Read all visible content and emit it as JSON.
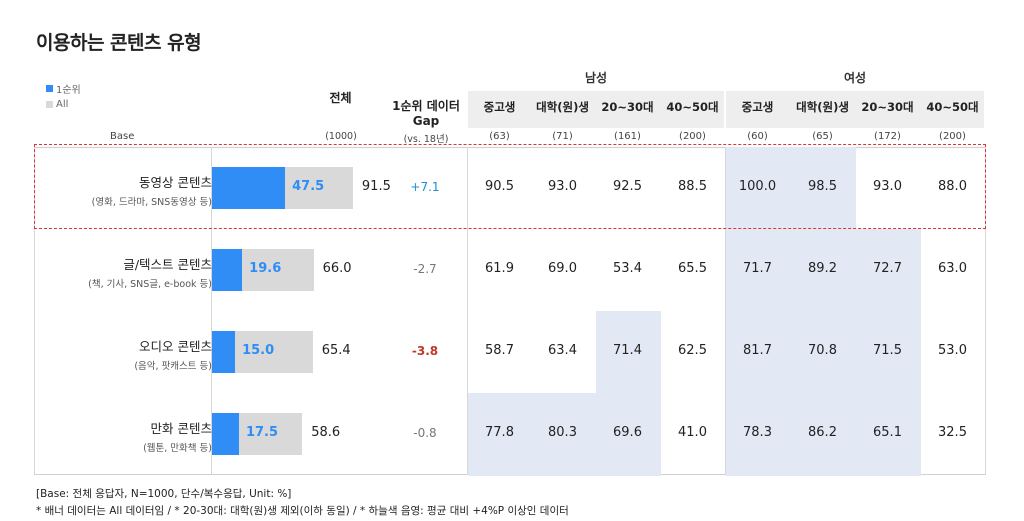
{
  "title": "이용하는 콘텐츠 유형",
  "legend": [
    {
      "label": "1순위",
      "color": "#2f8df5"
    },
    {
      "label": "All",
      "color": "#d9d9d9"
    }
  ],
  "base_label": "Base",
  "headers": {
    "total": "전체",
    "total_base": "(1000)",
    "gap_line1": "1순위 데이터",
    "gap_line2": "Gap",
    "gap_base": "(vs. 18년)"
  },
  "groups": [
    {
      "name": "남성",
      "cols": [
        "중고생",
        "대학(원)생",
        "20~30대",
        "40~50대"
      ],
      "bases": [
        "(63)",
        "(71)",
        "(161)",
        "(200)"
      ]
    },
    {
      "name": "여성",
      "cols": [
        "중고생",
        "대학(원)생",
        "20~30대",
        "40~50대"
      ],
      "bases": [
        "(60)",
        "(65)",
        "(172)",
        "(200)"
      ]
    }
  ],
  "chart_data": {
    "type": "bar",
    "title": "이용하는 콘텐츠 유형",
    "categories": [
      "동영상 콘텐츠",
      "글/텍스트 콘텐츠",
      "오디오 콘텐츠",
      "만화 콘텐츠"
    ],
    "category_notes": [
      "(영화, 드라마, SNS동영상 등)",
      "(책, 기사, SNS글, e-book 등)",
      "(음악, 팟캐스트 등)",
      "(웹툰, 만화책 등)"
    ],
    "series": [
      {
        "name": "1순위",
        "values": [
          47.5,
          19.6,
          15.0,
          17.5
        ],
        "labels": [
          "47.5",
          "19.6",
          "15.0",
          "17.5"
        ]
      },
      {
        "name": "All",
        "values": [
          91.5,
          66.0,
          65.4,
          58.6
        ],
        "labels": [
          "91.5",
          "66.0",
          "65.4",
          "58.6"
        ]
      }
    ],
    "gap": [
      "+7.1",
      "-2.7",
      "-3.8",
      "-0.8"
    ],
    "gap_colors": [
      "#1a8fd6",
      "#777777",
      "#c0392b",
      "#777777"
    ],
    "ylim": [
      0,
      100
    ],
    "table": [
      [
        "90.5",
        "93.0",
        "92.5",
        "88.5",
        "100.0",
        "98.5",
        "93.0",
        "88.0"
      ],
      [
        "61.9",
        "69.0",
        "53.4",
        "65.5",
        "71.7",
        "89.2",
        "72.7",
        "63.0"
      ],
      [
        "58.7",
        "63.4",
        "71.4",
        "62.5",
        "81.7",
        "70.8",
        "71.5",
        "53.0"
      ],
      [
        "77.8",
        "80.3",
        "69.6",
        "41.0",
        "78.3",
        "86.2",
        "65.1",
        "32.5"
      ]
    ],
    "highlight": [
      [
        false,
        false,
        false,
        false,
        true,
        true,
        false,
        false
      ],
      [
        false,
        false,
        false,
        false,
        true,
        true,
        true,
        false
      ],
      [
        false,
        false,
        true,
        false,
        true,
        true,
        true,
        false
      ],
      [
        true,
        true,
        true,
        false,
        true,
        true,
        true,
        false
      ]
    ]
  },
  "footnotes": [
    "[Base: 전체 응답자, N=1000, 단수/복수응답, Unit: %]",
    "* 배너 데이터는 All 데이터임 / * 20-30대: 대학(원)생 제외(이하 동일) / * 하늘색 음영: 평균 대비 +4%P 이상인 데이터"
  ]
}
